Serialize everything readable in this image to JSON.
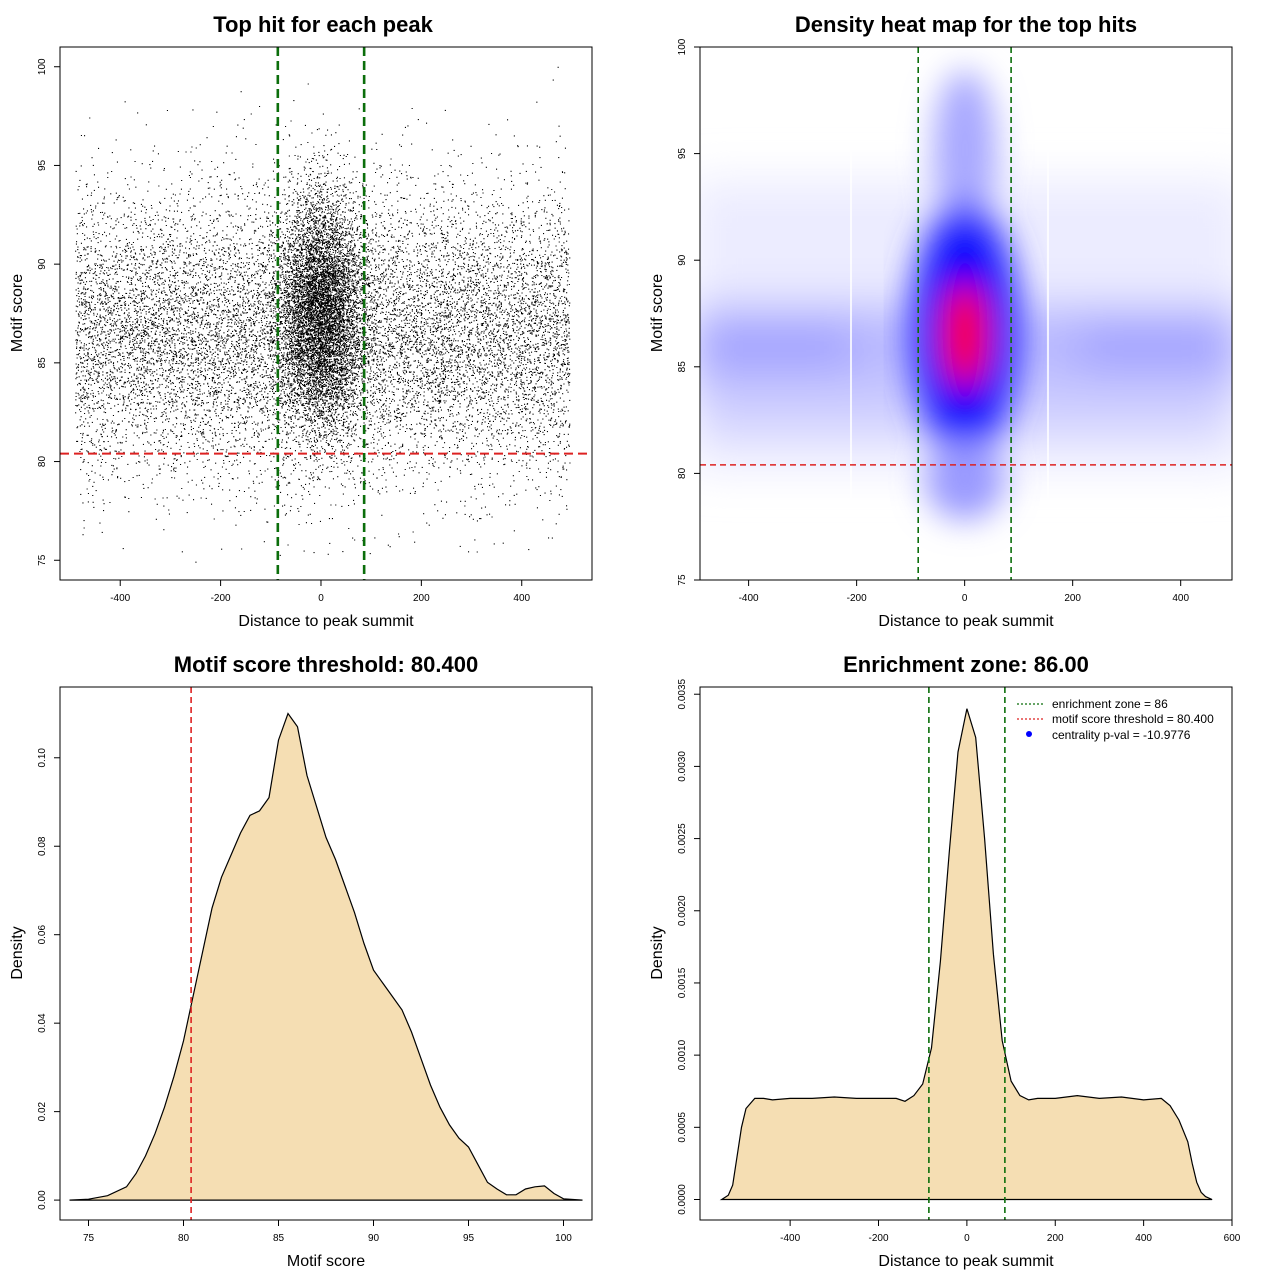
{
  "chart_data": [
    {
      "type": "scatter",
      "title": "Top hit for each peak",
      "xlabel": "Distance to peak summit",
      "ylabel": "Motif score",
      "xlim": [
        -520,
        540
      ],
      "ylim": [
        74,
        101
      ],
      "xticks": [
        -400,
        -200,
        0,
        200,
        400
      ],
      "yticks": [
        75,
        80,
        85,
        90,
        95,
        100
      ],
      "vlines": [
        -86,
        86
      ],
      "hline": 80.4,
      "n_points_estimated": 20000,
      "x_range": [
        -490,
        495
      ],
      "score_mode": 86.5,
      "center_mode": [
        0,
        87.5
      ]
    },
    {
      "type": "heatmap",
      "title": "Density heat map for the top hits",
      "xlabel": "Distance to peak summit",
      "ylabel": "Motif score",
      "xlim": [
        -490,
        495
      ],
      "ylim": [
        75,
        100
      ],
      "xticks": [
        -400,
        -200,
        0,
        200,
        400
      ],
      "yticks": [
        75,
        80,
        85,
        90,
        95,
        100
      ],
      "vlines": [
        -86,
        86
      ],
      "hline": 80.4,
      "colors": {
        "low": "#ffffff",
        "mid": "#0000ff",
        "high": "#ff0000"
      },
      "hot_spot": {
        "x": 0,
        "y": 87
      }
    },
    {
      "type": "area",
      "title": "Motif score threshold: 80.400",
      "xlabel": "Motif score",
      "ylabel": "Density",
      "xlim": [
        73.5,
        101.5
      ],
      "ylim": [
        -0.0045,
        0.116
      ],
      "xticks": [
        75,
        80,
        85,
        90,
        95,
        100
      ],
      "yticks": [
        0.0,
        0.02,
        0.04,
        0.06,
        0.08,
        0.1
      ],
      "ytick_labels": [
        "0.00",
        "0.02",
        "0.04",
        "0.06",
        "0.08",
        "0.10"
      ],
      "vline": 80.4,
      "x": [
        74,
        75,
        76,
        77,
        77.5,
        78,
        78.5,
        79,
        79.5,
        80,
        80.5,
        81,
        81.5,
        82,
        82.5,
        83,
        83.5,
        84,
        84.5,
        85,
        85.5,
        86,
        86.5,
        87,
        87.5,
        88,
        88.5,
        89,
        89.5,
        90,
        90.5,
        91,
        91.5,
        92,
        92.5,
        93,
        93.5,
        94,
        94.5,
        95,
        95.5,
        96,
        96.5,
        97,
        97.5,
        98,
        98.5,
        99,
        99.5,
        100,
        101
      ],
      "values": [
        0.0,
        0.0002,
        0.001,
        0.003,
        0.006,
        0.01,
        0.015,
        0.021,
        0.028,
        0.036,
        0.046,
        0.056,
        0.066,
        0.073,
        0.078,
        0.083,
        0.087,
        0.088,
        0.091,
        0.104,
        0.11,
        0.107,
        0.096,
        0.089,
        0.082,
        0.077,
        0.071,
        0.065,
        0.058,
        0.052,
        0.049,
        0.046,
        0.043,
        0.038,
        0.032,
        0.026,
        0.021,
        0.017,
        0.014,
        0.012,
        0.008,
        0.004,
        0.0025,
        0.0012,
        0.0012,
        0.0025,
        0.003,
        0.0032,
        0.0015,
        0.0003,
        0.0
      ]
    },
    {
      "type": "area",
      "title": "Enrichment zone: 86.00",
      "xlabel": "Distance to peak summit",
      "ylabel": "Density",
      "xlim": [
        -604,
        600
      ],
      "ylim": [
        -0.000142,
        0.00355
      ],
      "xticks": [
        -400,
        -200,
        0,
        200,
        400,
        600
      ],
      "yticks": [
        0.0,
        0.0005,
        0.001,
        0.0015,
        0.002,
        0.0025,
        0.003,
        0.0035
      ],
      "ytick_labels": [
        "0.0000",
        "0.0005",
        "0.0010",
        "0.0015",
        "0.0020",
        "0.0025",
        "0.0030",
        "0.0035"
      ],
      "vlines": [
        -86,
        86
      ],
      "x": [
        -555,
        -540,
        -530,
        -520,
        -510,
        -500,
        -480,
        -460,
        -440,
        -400,
        -350,
        -300,
        -250,
        -200,
        -160,
        -140,
        -120,
        -100,
        -80,
        -60,
        -40,
        -20,
        0,
        20,
        40,
        60,
        80,
        100,
        120,
        140,
        160,
        200,
        250,
        300,
        350,
        400,
        440,
        460,
        480,
        500,
        510,
        520,
        530,
        540,
        555
      ],
      "values": [
        0.0,
        3e-05,
        0.0001,
        0.0003,
        0.0005,
        0.00063,
        0.0007,
        0.0007,
        0.00069,
        0.0007,
        0.0007,
        0.00071,
        0.0007,
        0.0007,
        0.0007,
        0.00068,
        0.00072,
        0.0008,
        0.00105,
        0.00165,
        0.0024,
        0.0031,
        0.0034,
        0.0032,
        0.0025,
        0.0017,
        0.0011,
        0.00082,
        0.00072,
        0.00069,
        0.0007,
        0.0007,
        0.00072,
        0.0007,
        0.00071,
        0.00069,
        0.0007,
        0.00065,
        0.00055,
        0.0004,
        0.00025,
        0.00012,
        5e-05,
        2e-05,
        0.0
      ],
      "legend": {
        "position": "top-right",
        "entries": [
          "enrichment zone = 86",
          "motif score threshold = 80.400",
          "centrality p-val = -10.9776"
        ]
      }
    }
  ],
  "colors": {
    "points": "#000000",
    "enrichment_line": "#0b6e0b",
    "threshold_line": "#dd2222",
    "density_fill": "#f5deb3",
    "legend_dot": "#0000ff"
  }
}
